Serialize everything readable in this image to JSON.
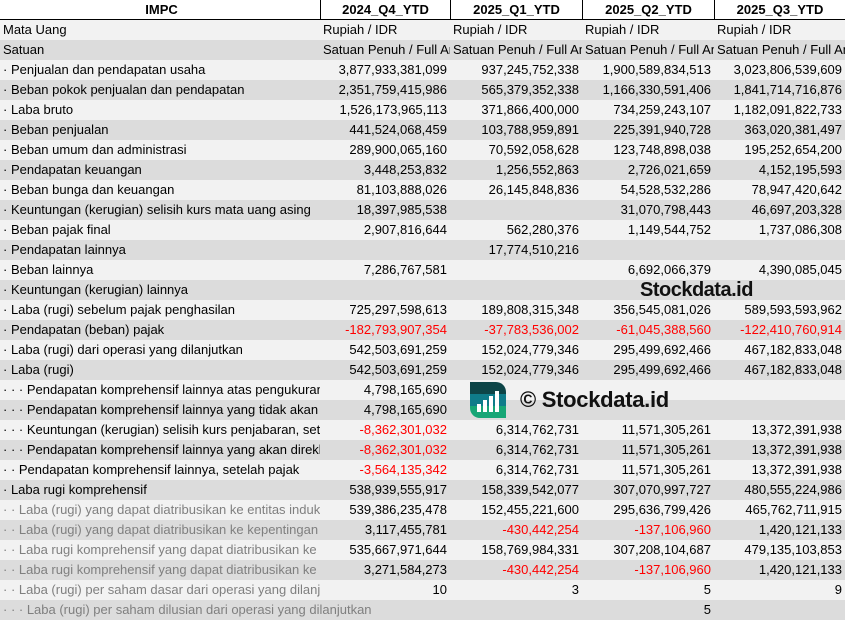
{
  "header": {
    "title": "IMPC",
    "periods": [
      "2024_Q4_YTD",
      "2025_Q1_YTD",
      "2025_Q2_YTD",
      "2025_Q3_YTD"
    ]
  },
  "meta_rows": [
    {
      "label": "Mata Uang",
      "values": [
        "Rupiah / IDR",
        "Rupiah / IDR",
        "Rupiah / IDR",
        "Rupiah / IDR"
      ]
    },
    {
      "label": "Satuan",
      "values": [
        "Satuan Penuh / Full Amount",
        "Satuan Penuh / Full Amount",
        "Satuan Penuh / Full Amount",
        "Satuan Penuh / Full Amount"
      ]
    }
  ],
  "rows": [
    {
      "label": "· Penjualan dan pendapatan usaha",
      "values": [
        "3,877,933,381,099",
        "937,245,752,338",
        "1,900,589,834,513",
        "3,023,806,539,609"
      ]
    },
    {
      "label": "· Beban pokok penjualan dan pendapatan",
      "values": [
        "2,351,759,415,986",
        "565,379,352,338",
        "1,166,330,591,406",
        "1,841,714,716,876"
      ]
    },
    {
      "label": "· Laba bruto",
      "values": [
        "1,526,173,965,113",
        "371,866,400,000",
        "734,259,243,107",
        "1,182,091,822,733"
      ]
    },
    {
      "label": "· Beban penjualan",
      "values": [
        "441,524,068,459",
        "103,788,959,891",
        "225,391,940,728",
        "363,020,381,497"
      ]
    },
    {
      "label": "· Beban umum dan administrasi",
      "values": [
        "289,900,065,160",
        "70,592,058,628",
        "123,748,898,038",
        "195,252,654,200"
      ]
    },
    {
      "label": "· Pendapatan keuangan",
      "values": [
        "3,448,253,832",
        "1,256,552,863",
        "2,726,021,659",
        "4,152,195,593"
      ]
    },
    {
      "label": "· Beban bunga dan keuangan",
      "values": [
        "81,103,888,026",
        "26,145,848,836",
        "54,528,532,286",
        "78,947,420,642"
      ]
    },
    {
      "label": "· Keuntungan (kerugian) selisih kurs mata uang asing",
      "values": [
        "18,397,985,538",
        "",
        "31,070,798,443",
        "46,697,203,328"
      ]
    },
    {
      "label": "· Beban pajak final",
      "values": [
        "2,907,816,644",
        "562,280,376",
        "1,149,544,752",
        "1,737,086,308"
      ]
    },
    {
      "label": "· Pendapatan lainnya",
      "values": [
        "",
        "17,774,510,216",
        "",
        ""
      ]
    },
    {
      "label": "· Beban lainnya",
      "values": [
        "7,286,767,581",
        "",
        "6,692,066,379",
        "4,390,085,045"
      ]
    },
    {
      "label": "· Keuntungan (kerugian) lainnya",
      "values": [
        "",
        "",
        "",
        ""
      ]
    },
    {
      "label": "· Laba (rugi) sebelum pajak penghasilan",
      "values": [
        "725,297,598,613",
        "189,808,315,348",
        "356,545,081,026",
        "589,593,593,962"
      ]
    },
    {
      "label": "· Pendapatan (beban) pajak",
      "values": [
        "-182,793,907,354",
        "-37,783,536,002",
        "-61,045,388,560",
        "-122,410,760,914"
      ]
    },
    {
      "label": "· Laba (rugi) dari operasi yang dilanjutkan",
      "values": [
        "542,503,691,259",
        "152,024,779,346",
        "295,499,692,466",
        "467,182,833,048"
      ]
    },
    {
      "label": "· Laba (rugi)",
      "values": [
        "542,503,691,259",
        "152,024,779,346",
        "295,499,692,466",
        "467,182,833,048"
      ]
    },
    {
      "label": "· · · Pendapatan komprehensif lainnya atas pengukuran",
      "values": [
        "4,798,165,690",
        "",
        "",
        ""
      ]
    },
    {
      "label": "· · · Pendapatan komprehensif lainnya yang tidak akan",
      "values": [
        "4,798,165,690",
        "",
        "",
        ""
      ]
    },
    {
      "label": "· · · Keuntungan (kerugian) selisih kurs penjabaran, setelah",
      "values": [
        "-8,362,301,032",
        "6,314,762,731",
        "11,571,305,261",
        "13,372,391,938"
      ]
    },
    {
      "label": "· · · Pendapatan komprehensif lainnya yang akan direklasifikasi",
      "values": [
        "-8,362,301,032",
        "6,314,762,731",
        "11,571,305,261",
        "13,372,391,938"
      ]
    },
    {
      "label": "· · Pendapatan komprehensif lainnya, setelah pajak",
      "values": [
        "-3,564,135,342",
        "6,314,762,731",
        "11,571,305,261",
        "13,372,391,938"
      ]
    },
    {
      "label": "· Laba rugi komprehensif",
      "values": [
        "538,939,555,917",
        "158,339,542,077",
        "307,070,997,727",
        "480,555,224,986"
      ]
    },
    {
      "label": "· · Laba (rugi) yang dapat diatribusikan ke entitas induk",
      "values": [
        "539,386,235,478",
        "152,455,221,600",
        "295,636,799,426",
        "465,762,711,915"
      ],
      "grey": true
    },
    {
      "label": "· · Laba (rugi) yang dapat diatribusikan ke kepentingan",
      "values": [
        "3,117,455,781",
        "-430,442,254",
        "-137,106,960",
        "1,420,121,133"
      ],
      "grey": true
    },
    {
      "label": "· · Laba rugi komprehensif yang dapat diatribusikan ke",
      "values": [
        "535,667,971,644",
        "158,769,984,331",
        "307,208,104,687",
        "479,135,103,853"
      ],
      "grey": true
    },
    {
      "label": "· · Laba rugi komprehensif yang dapat diatribusikan ke",
      "values": [
        "3,271,584,273",
        "-430,442,254",
        "-137,106,960",
        "1,420,121,133"
      ],
      "grey": true
    },
    {
      "label": "· · Laba (rugi) per saham dasar dari operasi yang dilanjutkan",
      "values": [
        "10",
        "3",
        "5",
        "9"
      ],
      "grey": true
    },
    {
      "label": "· · · Laba (rugi) per saham dilusian dari operasi yang dilanjutkan",
      "values": [
        "",
        "",
        "5",
        ""
      ],
      "grey": true,
      "overflow": true
    }
  ],
  "watermark": {
    "logo_text": "Stockdata.id",
    "copyright": "© Stockdata.id"
  },
  "colors": {
    "negative": "#ff0000",
    "row_light": "#f2f2f2",
    "row_dark": "#dcdcdc",
    "logo_dark": "#0d4548",
    "logo_mid": "#0f7c8a",
    "logo_green": "#17a676"
  }
}
